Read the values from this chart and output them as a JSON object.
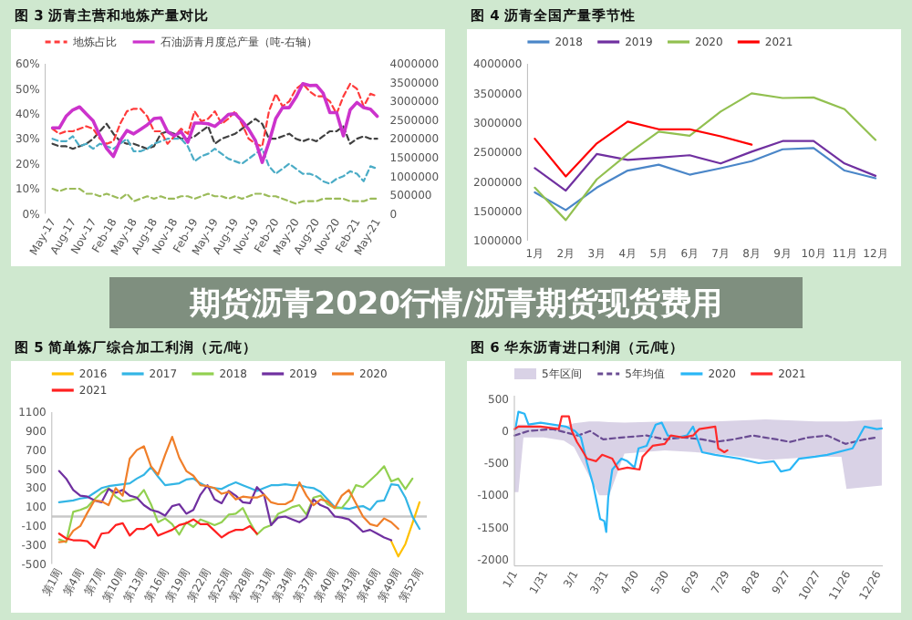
{
  "chart_data": [
    {
      "type": "line",
      "title": "图 3 沥青主营和地炼产量对比",
      "annotations": [
        "期货沥青2020行情/沥青期货现货费用"
      ],
      "legend": "top",
      "categories": [
        "May-17",
        null,
        null,
        "Aug-17",
        null,
        null,
        "Nov-17",
        null,
        null,
        "Feb-18",
        null,
        null,
        "May-18",
        null,
        null,
        "Aug-18",
        null,
        null,
        "Nov-18",
        null,
        null,
        "Feb-19",
        null,
        null,
        "May-19",
        null,
        null,
        "Aug-19",
        null,
        null,
        "Nov-19",
        null,
        null,
        "Feb-20",
        null,
        null,
        "May-20",
        null,
        null,
        "Aug-20",
        null,
        null,
        "Nov-20",
        null,
        null,
        "Feb-21",
        null,
        null,
        "May-21"
      ],
      "ylim": [
        0,
        60
      ],
      "yticks": [
        {
          "value": 0,
          "label": "0%"
        },
        {
          "value": 10,
          "label": "10%"
        },
        {
          "value": 20,
          "label": "20%"
        },
        {
          "value": 30,
          "label": "30%"
        },
        {
          "value": 40,
          "label": "40%"
        },
        {
          "value": 50,
          "label": "50%"
        },
        {
          "value": 60,
          "label": "60%"
        }
      ],
      "y2lim": [
        0,
        4000000
      ],
      "y2ticks": [
        0,
        500000,
        1000000,
        1500000,
        2000000,
        2500000,
        3000000,
        3500000,
        4000000
      ],
      "series": [
        {
          "color": "#404040",
          "line_style": "dashed",
          "values": [
            28,
            27,
            27,
            26,
            27,
            28,
            30,
            33,
            36,
            32,
            29,
            28,
            28,
            27,
            26,
            27,
            32,
            33,
            32,
            30,
            30,
            31,
            33,
            35,
            28,
            30,
            31,
            32,
            34,
            36,
            38,
            36,
            30,
            30,
            31,
            32,
            30,
            29,
            30,
            29,
            31,
            33,
            33,
            35,
            28,
            30,
            31,
            30,
            30
          ]
        },
        {
          "color": "#4bacc6",
          "line_style": "dashed",
          "values": [
            30,
            29,
            29,
            31,
            27,
            28,
            26,
            28,
            27,
            26,
            28,
            30,
            25,
            25,
            26,
            28,
            29,
            30,
            30,
            30,
            27,
            21,
            23,
            24,
            26,
            24,
            22,
            21,
            20,
            22,
            24,
            26,
            19,
            16,
            18,
            20,
            18,
            16,
            16,
            15,
            13,
            12,
            14,
            15,
            17,
            16,
            13,
            19,
            18
          ]
        },
        {
          "color": "#9bbb59",
          "line_style": "dashed",
          "values": [
            10,
            9,
            10,
            10,
            10,
            8,
            8,
            7,
            8,
            7,
            6,
            8,
            5,
            6,
            7,
            6,
            7,
            6,
            6,
            7,
            7,
            6,
            7,
            8,
            7,
            7,
            6,
            7,
            6,
            7,
            8,
            8,
            7,
            7,
            6,
            5,
            4,
            5,
            5,
            5,
            6,
            6,
            6,
            6,
            5,
            5,
            5,
            6,
            6
          ]
        },
        {
          "name": "地炼占比",
          "color": "#ff3b3b",
          "line_style": "dashed",
          "values": [
            34,
            32,
            33,
            33,
            34,
            35,
            34,
            30,
            28,
            29,
            36,
            41,
            42,
            42,
            39,
            33,
            33,
            28,
            31,
            34,
            32,
            41,
            37,
            38,
            41,
            36,
            38,
            41,
            36,
            30,
            28,
            27,
            41,
            48,
            43,
            45,
            50,
            52,
            49,
            47,
            47,
            45,
            40,
            47,
            52,
            50,
            43,
            48,
            47
          ]
        },
        {
          "name": "石油沥青月度总产量（吨-右轴）",
          "color": "#cc33cc",
          "axis": "y2",
          "line_style": "solid",
          "values": [
            2290000,
            2290000,
            2600000,
            2770000,
            2850000,
            2660000,
            2480000,
            2080000,
            1740000,
            1530000,
            1950000,
            2220000,
            2130000,
            2250000,
            2370000,
            2540000,
            2560000,
            2190000,
            2080000,
            2190000,
            1910000,
            2420000,
            2420000,
            2400000,
            2330000,
            2480000,
            2650000,
            2670000,
            2480000,
            2250000,
            1950000,
            1370000,
            1910000,
            2540000,
            2830000,
            2830000,
            3110000,
            3470000,
            3420000,
            3430000,
            3220000,
            2700000,
            2700000,
            2080000,
            2770000,
            2970000,
            2830000,
            2790000,
            2600000
          ]
        }
      ]
    },
    {
      "type": "line",
      "title": "图 4 沥青全国产量季节性",
      "legend": "top",
      "categories": [
        "1月",
        "2月",
        "3月",
        "4月",
        "5月",
        "6月",
        "7月",
        "8月",
        "9月",
        "10月",
        "11月",
        "12月"
      ],
      "ylim": [
        1000000,
        4000000
      ],
      "yticks": [
        1000000,
        1500000,
        2000000,
        2500000,
        3000000,
        3500000,
        4000000
      ],
      "series": [
        {
          "name": "2018",
          "color": "#4a86c8",
          "values": [
            1820000,
            1520000,
            1900000,
            2190000,
            2290000,
            2120000,
            2230000,
            2350000,
            2550000,
            2570000,
            2190000,
            2060000
          ]
        },
        {
          "name": "2019",
          "color": "#7030a0",
          "values": [
            2230000,
            1850000,
            2470000,
            2370000,
            2410000,
            2450000,
            2310000,
            2510000,
            2690000,
            2690000,
            2310000,
            2100000
          ]
        },
        {
          "name": "2020",
          "color": "#92c050",
          "values": [
            1900000,
            1350000,
            2040000,
            2470000,
            2850000,
            2780000,
            3190000,
            3500000,
            3420000,
            3430000,
            3230000,
            2710000
          ]
        },
        {
          "name": "2021",
          "color": "#ff0000",
          "values": [
            2730000,
            2090000,
            2650000,
            3020000,
            2890000,
            2890000,
            2770000,
            2630000,
            null,
            null,
            null,
            null
          ]
        }
      ]
    },
    {
      "type": "line",
      "title": "图 5 简单炼厂综合加工利润（元/吨）",
      "legend": "top",
      "categories": [
        "第1周",
        null,
        null,
        "第4周",
        null,
        null,
        "第7周",
        null,
        null,
        "第10周",
        null,
        null,
        "第13周",
        null,
        null,
        "第16周",
        null,
        null,
        "第19周",
        null,
        null,
        "第22周",
        null,
        null,
        "第25周",
        null,
        null,
        "第28周",
        null,
        null,
        "第31周",
        null,
        null,
        "第34周",
        null,
        null,
        "第37周",
        null,
        null,
        "第40周",
        null,
        null,
        "第43周",
        null,
        null,
        "第46周",
        null,
        null,
        "第49周",
        null,
        null,
        "第52周"
      ],
      "ylim": [
        -500,
        1100
      ],
      "yticks": [
        -500,
        -300,
        -100,
        100,
        300,
        500,
        700,
        900,
        1100
      ],
      "ref_lines": [
        {
          "axis": "y",
          "value": 0,
          "color": "#c8c8c8"
        }
      ],
      "series": [
        {
          "name": "2016",
          "color": "#ffc000",
          "values": [
            null,
            null,
            null,
            null,
            null,
            null,
            null,
            null,
            null,
            null,
            null,
            null,
            null,
            null,
            null,
            null,
            null,
            null,
            null,
            null,
            null,
            null,
            null,
            null,
            null,
            null,
            null,
            null,
            null,
            null,
            null,
            null,
            null,
            null,
            null,
            null,
            null,
            null,
            null,
            null,
            null,
            null,
            null,
            null,
            null,
            null,
            null,
            -260,
            -420,
            -290,
            -70,
            150
          ]
        },
        {
          "name": "2017",
          "color": "#33b5e5",
          "values": [
            150,
            160,
            170,
            190,
            200,
            250,
            300,
            320,
            330,
            340,
            350,
            400,
            440,
            520,
            420,
            330,
            340,
            350,
            390,
            400,
            350,
            310,
            300,
            290,
            330,
            360,
            330,
            300,
            270,
            300,
            330,
            330,
            340,
            330,
            330,
            310,
            300,
            260,
            180,
            100,
            90,
            80,
            100,
            110,
            70,
            160,
            170,
            340,
            330,
            200,
            0,
            -130
          ]
        },
        {
          "name": "2018",
          "color": "#92d050",
          "values": [
            -240,
            -270,
            50,
            70,
            100,
            180,
            250,
            300,
            210,
            160,
            170,
            190,
            280,
            130,
            -60,
            -20,
            -80,
            -190,
            -60,
            -110,
            -30,
            -60,
            -90,
            -60,
            20,
            30,
            90,
            -60,
            -190,
            -120,
            -90,
            30,
            60,
            100,
            120,
            20,
            200,
            220,
            130,
            90,
            90,
            180,
            330,
            310,
            380,
            450,
            530,
            370,
            400,
            290,
            400,
            null
          ]
        },
        {
          "name": "2019",
          "color": "#7030a0",
          "values": [
            480,
            400,
            280,
            220,
            210,
            170,
            150,
            290,
            250,
            280,
            220,
            200,
            120,
            70,
            50,
            10,
            110,
            130,
            30,
            70,
            230,
            330,
            180,
            140,
            270,
            220,
            150,
            140,
            310,
            230,
            -90,
            -10,
            0,
            -30,
            -60,
            -10,
            180,
            120,
            90,
            0,
            -10,
            -30,
            -90,
            -160,
            -140,
            -180,
            -220,
            -250,
            null,
            null,
            null,
            null
          ]
        },
        {
          "name": "2020",
          "color": "#f07f2a",
          "values": [
            -270,
            -260,
            -150,
            -100,
            40,
            170,
            160,
            120,
            300,
            220,
            610,
            700,
            740,
            530,
            440,
            650,
            840,
            620,
            480,
            430,
            330,
            320,
            300,
            240,
            260,
            180,
            210,
            200,
            200,
            230,
            150,
            130,
            130,
            170,
            360,
            220,
            120,
            180,
            160,
            90,
            220,
            280,
            140,
            0,
            -80,
            -100,
            -20,
            -60,
            -130,
            null,
            null,
            null
          ]
        },
        {
          "name": "2021",
          "color": "#ff2020",
          "values": [
            -180,
            -230,
            -250,
            -250,
            -260,
            -330,
            -180,
            -170,
            -90,
            -70,
            -200,
            -130,
            -130,
            -80,
            -200,
            -170,
            -140,
            -90,
            -70,
            -30,
            -80,
            -80,
            -150,
            -220,
            -170,
            -140,
            -140,
            -100,
            -180,
            null,
            null,
            null,
            null,
            null,
            null,
            null,
            null,
            null,
            null,
            null,
            null,
            null,
            null,
            null,
            null,
            null,
            null,
            null,
            null,
            null,
            null,
            null
          ]
        }
      ]
    },
    {
      "type": "line",
      "title": "图 6 华东沥青进口利润（元/吨）",
      "legend": "top",
      "xlim": [
        "--01-01",
        "--12-31"
      ],
      "xticks": [
        {
          "value": "--01-01",
          "label": "1/1"
        },
        {
          "value": "--01-31",
          "label": "1/31"
        },
        {
          "value": "--03-01",
          "label": "3/1"
        },
        {
          "value": "--03-31",
          "label": "3/31"
        },
        {
          "value": "--04-30",
          "label": "4/30"
        },
        {
          "value": "--05-30",
          "label": "5/30"
        },
        {
          "value": "--06-29",
          "label": "6/29"
        },
        {
          "value": "--07-29",
          "label": "7/29"
        },
        {
          "value": "--08-28",
          "label": "8/28"
        },
        {
          "value": "--09-27",
          "label": "9/27"
        },
        {
          "value": "--10-27",
          "label": "10/27"
        },
        {
          "value": "--11-26",
          "label": "11/26"
        },
        {
          "value": "--12-26",
          "label": "12/26"
        }
      ],
      "ylim": [
        -2100,
        550
      ],
      "yticks": [
        -2000,
        -1500,
        -1000,
        -500,
        0,
        500
      ],
      "series": [
        {
          "name": "5年区间",
          "type": "line",
          "color": "#d9d2e6",
          "x": [
            "--01-01",
            "--01-05",
            "--01-10",
            "--01-30",
            "--02-19",
            "--02-29",
            "--03-15",
            "--03-25",
            "--04-04",
            "--04-19",
            "--05-29",
            "--07-18",
            "--09-06",
            "--10-26",
            "--11-20",
            "--11-25",
            "--12-30"
          ],
          "lower": [
            -950,
            -950,
            -100,
            -100,
            -150,
            -250,
            -700,
            -1000,
            -1000,
            -350,
            -300,
            -350,
            -450,
            -400,
            -400,
            -900,
            -850
          ],
          "upper": [
            30,
            100,
            100,
            80,
            60,
            120,
            150,
            150,
            140,
            130,
            150,
            150,
            180,
            150,
            150,
            150,
            180
          ],
          "values": [
            null,
            null,
            null,
            null,
            null,
            null,
            null,
            null,
            null,
            null,
            null,
            null,
            null,
            null,
            null,
            null,
            null
          ]
        },
        {
          "name": "5年均值",
          "color": "#6a4c93",
          "line_style": "dashed",
          "x": [
            "--01-01",
            "--01-15",
            "--02-08",
            "--03-04",
            "--03-16",
            "--03-29",
            "--04-16",
            "--05-11",
            "--05-29",
            "--06-17",
            "--07-05",
            "--07-18",
            "--08-05",
            "--08-24",
            "--09-05",
            "--09-17",
            "--09-30",
            "--10-18",
            "--11-06",
            "--11-24",
            "--12-13",
            "--12-25"
          ],
          "values": [
            -70,
            0,
            30,
            -70,
            0,
            -130,
            -100,
            -70,
            -130,
            -100,
            -130,
            -170,
            -130,
            -70,
            -100,
            -130,
            -170,
            -100,
            -70,
            -200,
            -130,
            -100
          ]
        },
        {
          "name": "2020",
          "color": "#29b6f6",
          "x": [
            "--01-02",
            "--01-05",
            "--01-11",
            "--01-15",
            "--01-27",
            "--02-21",
            "--03-01",
            "--03-07",
            "--03-13",
            "--03-19",
            "--03-26",
            "--03-30",
            "--04-01",
            "--04-03",
            "--04-07",
            "--04-16",
            "--04-22",
            "--04-29",
            "--05-03",
            "--05-11",
            "--05-20",
            "--05-26",
            "--06-01",
            "--06-11",
            "--06-20",
            "--06-26",
            "--07-05",
            "--07-18",
            "--08-11",
            "--08-30",
            "--09-14",
            "--09-21",
            "--09-30",
            "--10-09",
            "--10-25",
            "--11-06",
            "--12-01",
            "--12-07",
            "--12-13",
            "--12-25",
            "--12-30"
          ],
          "values": [
            30,
            300,
            270,
            100,
            130,
            70,
            0,
            -100,
            -500,
            -830,
            -1370,
            -1400,
            -1570,
            -1030,
            -600,
            -430,
            -470,
            -570,
            -270,
            -230,
            100,
            130,
            -70,
            -100,
            -70,
            70,
            -330,
            -370,
            -430,
            -500,
            -470,
            -630,
            -600,
            -430,
            -400,
            -370,
            -270,
            -100,
            70,
            30,
            40
          ]
        },
        {
          "name": "2021",
          "color": "#ff2a2a",
          "x": [
            "--01-01",
            "--01-05",
            "--01-27",
            "--02-14",
            "--02-17",
            "--02-24",
            "--02-27",
            "--03-03",
            "--03-07",
            "--03-13",
            "--03-22",
            "--03-28",
            "--04-07",
            "--04-13",
            "--04-22",
            "--05-04",
            "--05-07",
            "--05-17",
            "--05-29",
            "--06-04",
            "--06-16",
            "--06-26",
            "--07-02",
            "--07-18",
            "--07-21",
            "--07-27",
            "--07-30"
          ],
          "values": [
            30,
            70,
            70,
            30,
            230,
            230,
            0,
            -170,
            -270,
            -430,
            -470,
            -370,
            -430,
            -600,
            -570,
            -600,
            -400,
            -230,
            -200,
            -70,
            -100,
            -70,
            30,
            70,
            -270,
            -330,
            -300
          ]
        }
      ]
    }
  ]
}
